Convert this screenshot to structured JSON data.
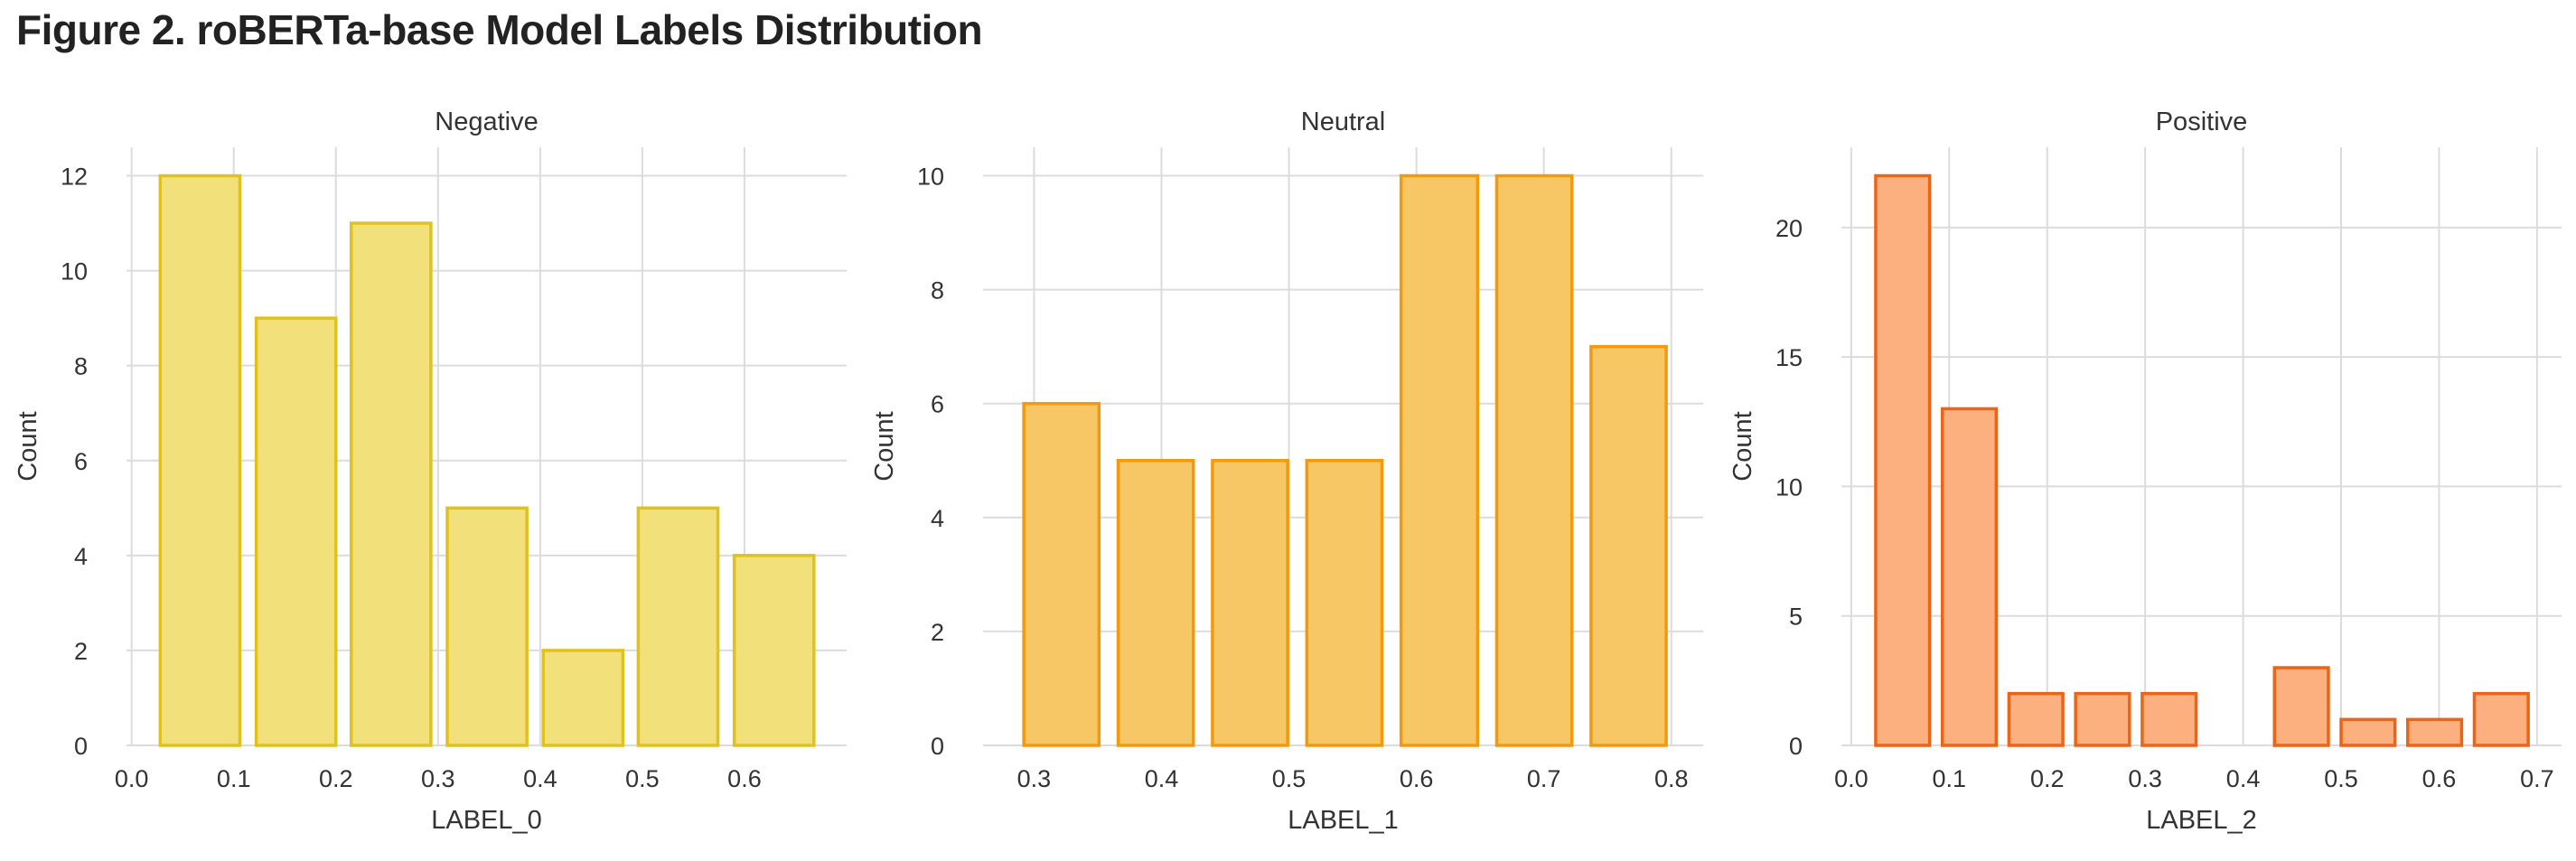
{
  "title": "Figure 2. roBERTa-base Model Labels Distribution",
  "chart_data": [
    {
      "type": "bar",
      "title": "Negative",
      "xlabel": "LABEL_0",
      "ylabel": "Count",
      "xlim": [
        -0.005,
        0.7
      ],
      "ylim": [
        0,
        12.6
      ],
      "xticks": [
        "0.0",
        "0.1",
        "0.2",
        "0.3",
        "0.4",
        "0.5",
        "0.6"
      ],
      "yticks": [
        "0",
        "2",
        "4",
        "6",
        "8",
        "10",
        "12"
      ],
      "bins": [
        [
          0.028,
          0.106
        ],
        [
          0.122,
          0.2
        ],
        [
          0.215,
          0.293
        ],
        [
          0.309,
          0.387
        ],
        [
          0.403,
          0.481
        ],
        [
          0.496,
          0.574
        ],
        [
          0.59,
          0.668
        ]
      ],
      "values": [
        12,
        9,
        11,
        5,
        2,
        5,
        4
      ],
      "fill": "#f2e07a",
      "stroke": "#e0c21e",
      "grid": true
    },
    {
      "type": "bar",
      "title": "Neutral",
      "xlabel": "LABEL_1",
      "ylabel": "Count",
      "xlim": [
        0.26,
        0.825
      ],
      "ylim": [
        0,
        10.5
      ],
      "xticks": [
        "0.3",
        "0.4",
        "0.5",
        "0.6",
        "0.7",
        "0.8"
      ],
      "yticks": [
        "0",
        "2",
        "4",
        "6",
        "8",
        "10"
      ],
      "bins": [
        [
          0.292,
          0.351
        ],
        [
          0.366,
          0.425
        ],
        [
          0.44,
          0.499
        ],
        [
          0.514,
          0.573
        ],
        [
          0.588,
          0.648
        ],
        [
          0.663,
          0.722
        ],
        [
          0.737,
          0.796
        ]
      ],
      "values": [
        6,
        5,
        5,
        5,
        10,
        10,
        7
      ],
      "fill": "#f7c665",
      "stroke": "#f29a0f",
      "grid": true
    },
    {
      "type": "bar",
      "title": "Positive",
      "xlabel": "LABEL_2",
      "ylabel": "Count",
      "xlim": [
        -0.01,
        0.725
      ],
      "ylim": [
        0,
        23.1
      ],
      "xticks": [
        "0.0",
        "0.1",
        "0.2",
        "0.3",
        "0.4",
        "0.5",
        "0.6",
        "0.7"
      ],
      "yticks": [
        "0",
        "5",
        "10",
        "15",
        "20"
      ],
      "bins": [
        [
          0.025,
          0.08
        ],
        [
          0.093,
          0.148
        ],
        [
          0.161,
          0.216
        ],
        [
          0.229,
          0.284
        ],
        [
          0.297,
          0.352
        ],
        [
          0.365,
          0.419
        ],
        [
          0.432,
          0.487
        ],
        [
          0.5,
          0.555
        ],
        [
          0.568,
          0.623
        ],
        [
          0.636,
          0.691
        ]
      ],
      "values": [
        22,
        13,
        2,
        2,
        2,
        0,
        3,
        1,
        1,
        2
      ],
      "fill": "#fdb07f",
      "stroke": "#ec6517",
      "grid": true
    }
  ]
}
